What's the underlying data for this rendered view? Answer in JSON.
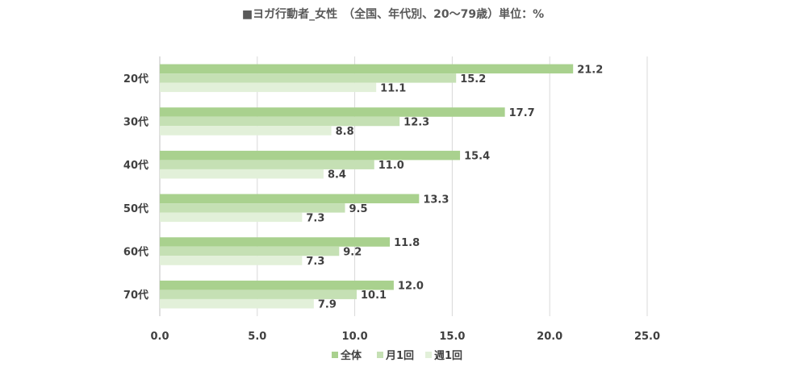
{
  "chart_data": {
    "type": "bar",
    "orientation": "horizontal",
    "title": "■ヨガ行動者_女性　（全国、年代別、20～79歳）単位：%",
    "categories": [
      "20代",
      "30代",
      "40代",
      "50代",
      "60代",
      "70代"
    ],
    "series": [
      {
        "name": "全体",
        "color": "#a9d18e",
        "values": [
          21.2,
          17.7,
          15.4,
          13.3,
          11.8,
          12.0
        ],
        "labels": [
          "21.2",
          "17.7",
          "15.4",
          "13.3",
          "11.8",
          "12.0"
        ]
      },
      {
        "name": "月1回",
        "color": "#c5e0b4",
        "values": [
          15.2,
          12.3,
          11.0,
          9.5,
          9.2,
          10.1
        ],
        "labels": [
          "15.2",
          "12.3",
          "11.0",
          "9.5",
          "9.2",
          "10.1"
        ]
      },
      {
        "name": "週1回",
        "color": "#e2f0d9",
        "values": [
          11.1,
          8.8,
          8.4,
          7.3,
          7.3,
          7.9
        ],
        "labels": [
          "11.1",
          "8.8",
          "8.4",
          "7.3",
          "7.3",
          "7.9"
        ]
      }
    ],
    "xlim": [
      0,
      25
    ],
    "xticks": [
      "0.0",
      "5.0",
      "10.0",
      "15.0",
      "20.0",
      "25.0"
    ],
    "grid": true,
    "legend": "bottom"
  }
}
